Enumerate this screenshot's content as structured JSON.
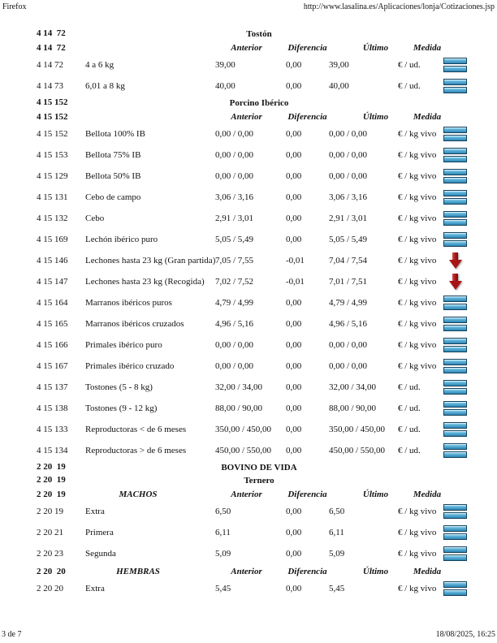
{
  "page_header": {
    "app": "Firefox",
    "url": "http://www.lasalina.es/Aplicaciones/lonja/Cotizaciones.jsp"
  },
  "page_footer": {
    "page_indicator": "3 de 7",
    "timestamp": "18/08/2025, 16:25"
  },
  "columns": [
    "Anterior",
    "Diferencia",
    "Último",
    "Medida"
  ],
  "icons": {
    "bars": "stacked-blue-bars-icon",
    "arrow-down": "red-down-arrow-icon"
  },
  "colors": {
    "bar_fill_top": "#a6e0f4",
    "bar_fill_bottom": "#2e86b3",
    "bar_border": "#16425c",
    "arrow_red": "#a81414",
    "text": "#131313"
  },
  "sections": [
    {
      "code": "4 14  72",
      "title": "Tostón",
      "groups": [
        {
          "code": "4 14  72",
          "label": "",
          "rows": [
            {
              "code": "4 14 72",
              "desc": "4 a 6 kg",
              "anterior": "39,00",
              "diferencia": "0,00",
              "ultimo": "39,00",
              "medida": "€ / ud.",
              "icon": "bars"
            },
            {
              "code": "4 14 73",
              "desc": "6,01 a 8 kg",
              "anterior": "40,00",
              "diferencia": "0,00",
              "ultimo": "40,00",
              "medida": "€ / ud.",
              "icon": "bars"
            }
          ]
        }
      ]
    },
    {
      "code": "4 15 152",
      "title": "Porcino Ibérico",
      "groups": [
        {
          "code": "4 15 152",
          "label": "",
          "rows": [
            {
              "code": "4 15 152",
              "desc": "Bellota 100% IB",
              "anterior": "0,00 / 0,00",
              "diferencia": "0,00",
              "ultimo": "0,00 / 0,00",
              "medida": "€ / kg vivo",
              "icon": "bars"
            },
            {
              "code": "4 15 153",
              "desc": "Bellota 75% IB",
              "anterior": "0,00 / 0,00",
              "diferencia": "0,00",
              "ultimo": "0,00 / 0,00",
              "medida": "€ / kg vivo",
              "icon": "bars"
            },
            {
              "code": "4 15 129",
              "desc": "Bellota 50% IB",
              "anterior": "0,00 / 0,00",
              "diferencia": "0,00",
              "ultimo": "0,00 / 0,00",
              "medida": "€ / kg vivo",
              "icon": "bars"
            },
            {
              "code": "4 15 131",
              "desc": "Cebo de campo",
              "anterior": "3,06 / 3,16",
              "diferencia": "0,00",
              "ultimo": "3,06 / 3,16",
              "medida": "€ / kg vivo",
              "icon": "bars"
            },
            {
              "code": "4 15 132",
              "desc": "Cebo",
              "anterior": "2,91 / 3,01",
              "diferencia": "0,00",
              "ultimo": "2,91 / 3,01",
              "medida": "€ / kg vivo",
              "icon": "bars"
            },
            {
              "code": "4 15 169",
              "desc": "Lechón ibérico puro",
              "anterior": "5,05 / 5,49",
              "diferencia": "0,00",
              "ultimo": "5,05 / 5,49",
              "medida": "€ / kg vivo",
              "icon": "bars"
            },
            {
              "code": "4 15 146",
              "desc": "Lechones hasta 23 kg (Gran partida)",
              "anterior": "7,05 / 7,55",
              "diferencia": "-0,01",
              "ultimo": "7,04 / 7,54",
              "medida": "€ / kg vivo",
              "icon": "arrow-down"
            },
            {
              "code": "4 15 147",
              "desc": "Lechones hasta 23 kg (Recogida)",
              "anterior": "7,02 / 7,52",
              "diferencia": "-0,01",
              "ultimo": "7,01 / 7,51",
              "medida": "€ / kg vivo",
              "icon": "arrow-down"
            },
            {
              "code": "4 15 164",
              "desc": "Marranos ibéricos puros",
              "anterior": "4,79 / 4,99",
              "diferencia": "0,00",
              "ultimo": "4,79 / 4,99",
              "medida": "€ / kg vivo",
              "icon": "bars"
            },
            {
              "code": "4 15 165",
              "desc": "Marranos ibéricos cruzados",
              "anterior": "4,96 / 5,16",
              "diferencia": "0,00",
              "ultimo": "4,96 / 5,16",
              "medida": "€ / kg vivo",
              "icon": "bars"
            },
            {
              "code": "4 15 166",
              "desc": "Primales ibérico puro",
              "anterior": "0,00 / 0,00",
              "diferencia": "0,00",
              "ultimo": "0,00 / 0,00",
              "medida": "€ / kg vivo",
              "icon": "bars"
            },
            {
              "code": "4 15 167",
              "desc": "Primales ibérico cruzado",
              "anterior": "0,00 / 0,00",
              "diferencia": "0,00",
              "ultimo": "0,00 / 0,00",
              "medida": "€ / kg vivo",
              "icon": "bars"
            },
            {
              "code": "4 15 137",
              "desc": "Tostones (5 - 8 kg)",
              "anterior": "32,00 / 34,00",
              "diferencia": "0,00",
              "ultimo": "32,00 / 34,00",
              "medida": "€ / ud.",
              "icon": "bars"
            },
            {
              "code": "4 15 138",
              "desc": "Tostones (9 - 12 kg)",
              "anterior": "88,00 / 90,00",
              "diferencia": "0,00",
              "ultimo": "88,00 / 90,00",
              "medida": "€ / ud.",
              "icon": "bars"
            },
            {
              "code": "4 15 133",
              "desc": "Reproductoras < de 6 meses",
              "anterior": "350,00 / 450,00",
              "diferencia": "0,00",
              "ultimo": "350,00 / 450,00",
              "medida": "€ / ud.",
              "icon": "bars"
            },
            {
              "code": "4 15 134",
              "desc": "Reproductoras > de 6 meses",
              "anterior": "450,00 / 550,00",
              "diferencia": "0,00",
              "ultimo": "450,00 / 550,00",
              "medida": "€ / ud.",
              "icon": "bars"
            }
          ]
        }
      ]
    },
    {
      "code": "2 20  19",
      "title": "BOVINO DE VIDA",
      "subtitle": {
        "code": "2 20  19",
        "title": "Ternero"
      },
      "groups": [
        {
          "code": "2 20  19",
          "label": "MACHOS",
          "rows": [
            {
              "code": "2 20 19",
              "desc": "Extra",
              "anterior": "6,50",
              "diferencia": "0,00",
              "ultimo": "6,50",
              "medida": "€ / kg vivo",
              "icon": "bars"
            },
            {
              "code": "2 20 21",
              "desc": "Primera",
              "anterior": "6,11",
              "diferencia": "0,00",
              "ultimo": "6,11",
              "medida": "€ / kg vivo",
              "icon": "bars"
            },
            {
              "code": "2 20 23",
              "desc": "Segunda",
              "anterior": "5,09",
              "diferencia": "0,00",
              "ultimo": "5,09",
              "medida": "€ / kg vivo",
              "icon": "bars"
            }
          ]
        },
        {
          "code": "2 20  20",
          "label": "HEMBRAS",
          "rows": [
            {
              "code": "2 20 20",
              "desc": "Extra",
              "anterior": "5,45",
              "diferencia": "0,00",
              "ultimo": "5,45",
              "medida": "€ / kg vivo",
              "icon": "bars"
            }
          ]
        }
      ]
    }
  ]
}
